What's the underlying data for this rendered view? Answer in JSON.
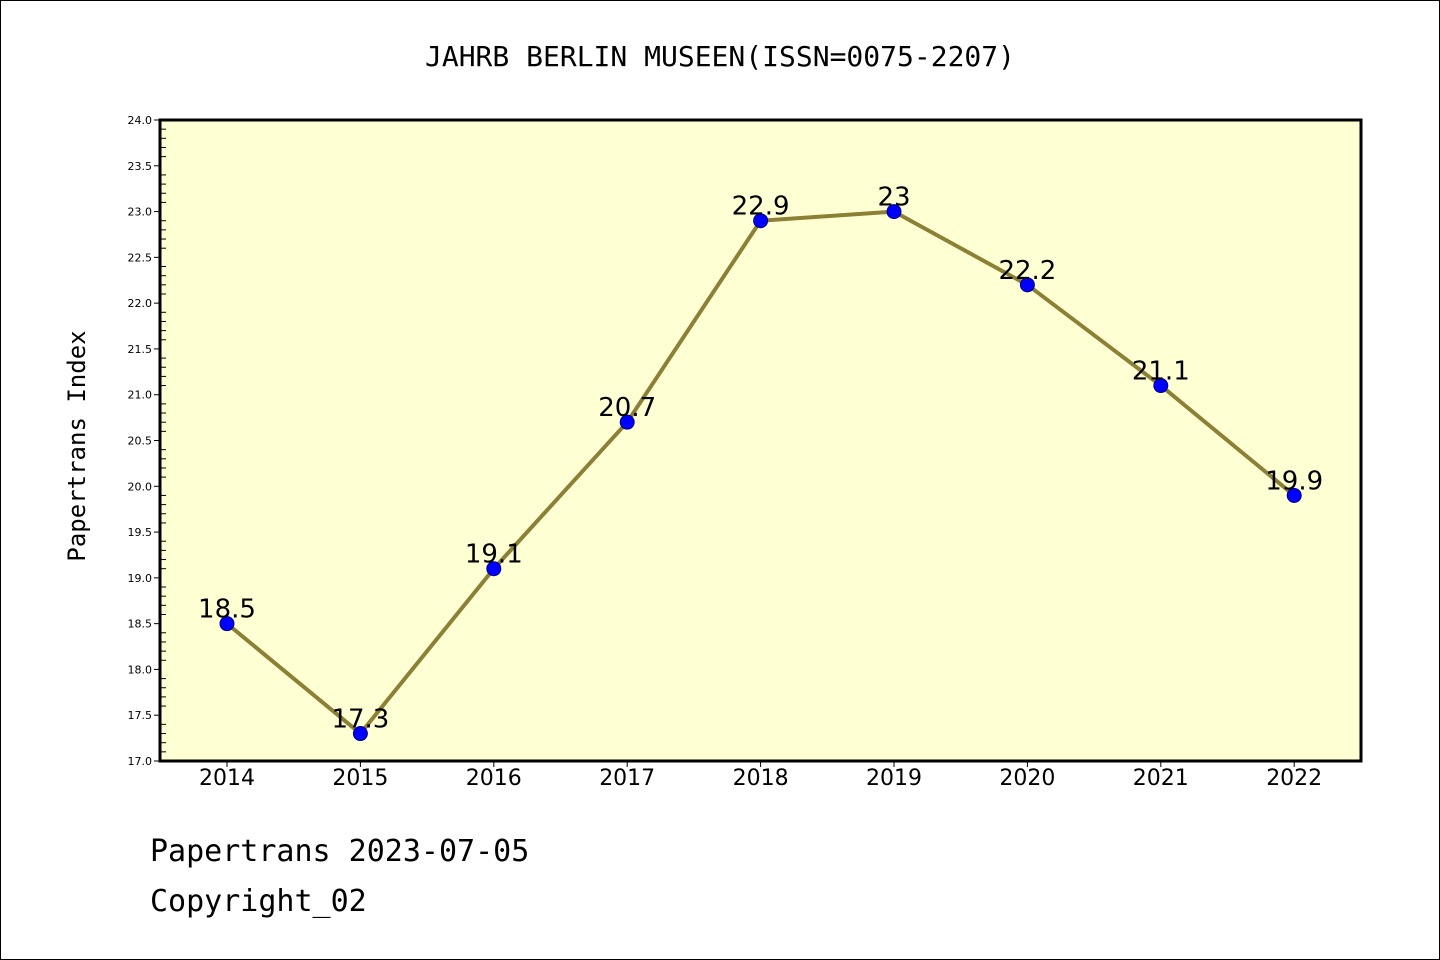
{
  "chart_data": {
    "type": "line",
    "title": "JAHRB BERLIN MUSEEN(ISSN=0075-2207)",
    "xlabel": "",
    "ylabel": "Papertrans Index",
    "categories": [
      "2014",
      "2015",
      "2016",
      "2017",
      "2018",
      "2019",
      "2020",
      "2021",
      "2022"
    ],
    "series": [
      {
        "values": [
          18.5,
          17.3,
          19.1,
          20.7,
          22.9,
          23.0,
          22.2,
          21.1,
          19.9
        ],
        "value_labels": [
          "18.5",
          "17.3",
          "19.1",
          "20.7",
          "22.9",
          "23",
          "22.2",
          "21.1",
          "19.9"
        ]
      }
    ],
    "ylim": [
      17.0,
      24.0
    ],
    "y_tick_labels": [
      "17.0",
      "17.5",
      "18.0",
      "18.5",
      "19.0",
      "19.5",
      "20.0",
      "20.5",
      "21.0",
      "21.5",
      "22.0",
      "22.5",
      "23.0",
      "23.5",
      "24.0"
    ],
    "grid": false,
    "legend": "none",
    "colors": {
      "plot_background": "#ffffd4",
      "line": "#8b8035",
      "marker": "#0000ff",
      "axes": "#000000"
    }
  },
  "footer": {
    "line1": "Papertrans 2023-07-05",
    "line2": "Copyright_02"
  }
}
